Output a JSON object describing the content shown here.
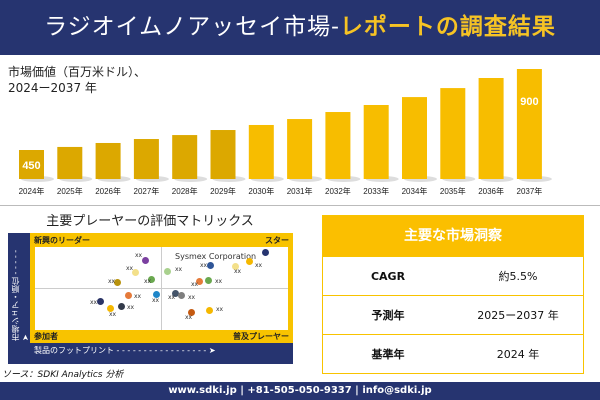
{
  "header": {
    "title_main": "ラジオイムノアッセイ市場-",
    "title_accent": "レポートの調査結果"
  },
  "chart_data": {
    "type": "bar",
    "title": "市場価値（百万米ドル）、",
    "subtitle": "2024ー2037 年",
    "categories": [
      "2024年",
      "2025年",
      "2026年",
      "2027年",
      "2028年",
      "2029年",
      "2030年",
      "2031年",
      "2032年",
      "2033年",
      "2034年",
      "2035年",
      "2036年",
      "2037年"
    ],
    "values": [
      450,
      467,
      489,
      511,
      533,
      561,
      589,
      622,
      661,
      700,
      744,
      794,
      850,
      900
    ],
    "data_labels": {
      "0": "450",
      "13": "900"
    },
    "bar_color": "#f5b800",
    "grid": false,
    "legend": "none"
  },
  "matrix": {
    "title": "主要プレーヤーの評価マトリックス",
    "quadrants": {
      "top_left": "新興のリーダー",
      "top_right": "スター",
      "bottom_left": "参加者",
      "bottom_right": "普及プレーヤー"
    },
    "x_axis": "製品のフットプリント - - - - - - - - - - - - - - - - - ➤",
    "y_axis": "市場シェア・順位 - - - - - ➤",
    "highlight": "Sysmex Corporation",
    "points": [
      {
        "label": "xx",
        "color": "#7b3fa0"
      },
      {
        "label": "xx",
        "color": "#f3e08a"
      },
      {
        "label": "xx",
        "color": "#b8920c"
      },
      {
        "label": "xx",
        "color": "#6aa84f"
      },
      {
        "label": "xx",
        "color": "#e57a3a"
      },
      {
        "label": "xx",
        "color": "#1f86c8"
      },
      {
        "label": "xx",
        "color": "#2a3366"
      },
      {
        "label": "xx",
        "color": "#f5b800"
      },
      {
        "label": "xx",
        "color": "#333a4a"
      },
      {
        "label": "",
        "color": "#263470"
      },
      {
        "label": "xx",
        "color": "#f5b800"
      },
      {
        "label": "xx",
        "color": "#f3e08a"
      },
      {
        "label": "xx",
        "color": "#2f5597"
      },
      {
        "label": "xx",
        "color": "#a9d18e"
      },
      {
        "label": "xx",
        "color": "#e57a3a"
      },
      {
        "label": "xx",
        "color": "#6aa84f"
      },
      {
        "label": "xx",
        "color": "#44546a"
      },
      {
        "label": "xx",
        "color": "#7f7f7f"
      },
      {
        "label": "xx",
        "color": "#c55a11"
      },
      {
        "label": "xx",
        "color": "#f5b800"
      }
    ]
  },
  "source": "ソース：SDKI Analytics 分析",
  "insights": {
    "title": "主要な市場洞察",
    "rows": [
      {
        "key": "CAGR",
        "value": "約5.5%"
      },
      {
        "key": "予測年",
        "value": "2025ー2037 年"
      },
      {
        "key": "基準年",
        "value": "2024 年"
      }
    ]
  },
  "footer": "www.sdki.jp | +81-505-050-9337 | info@sdki.jp"
}
